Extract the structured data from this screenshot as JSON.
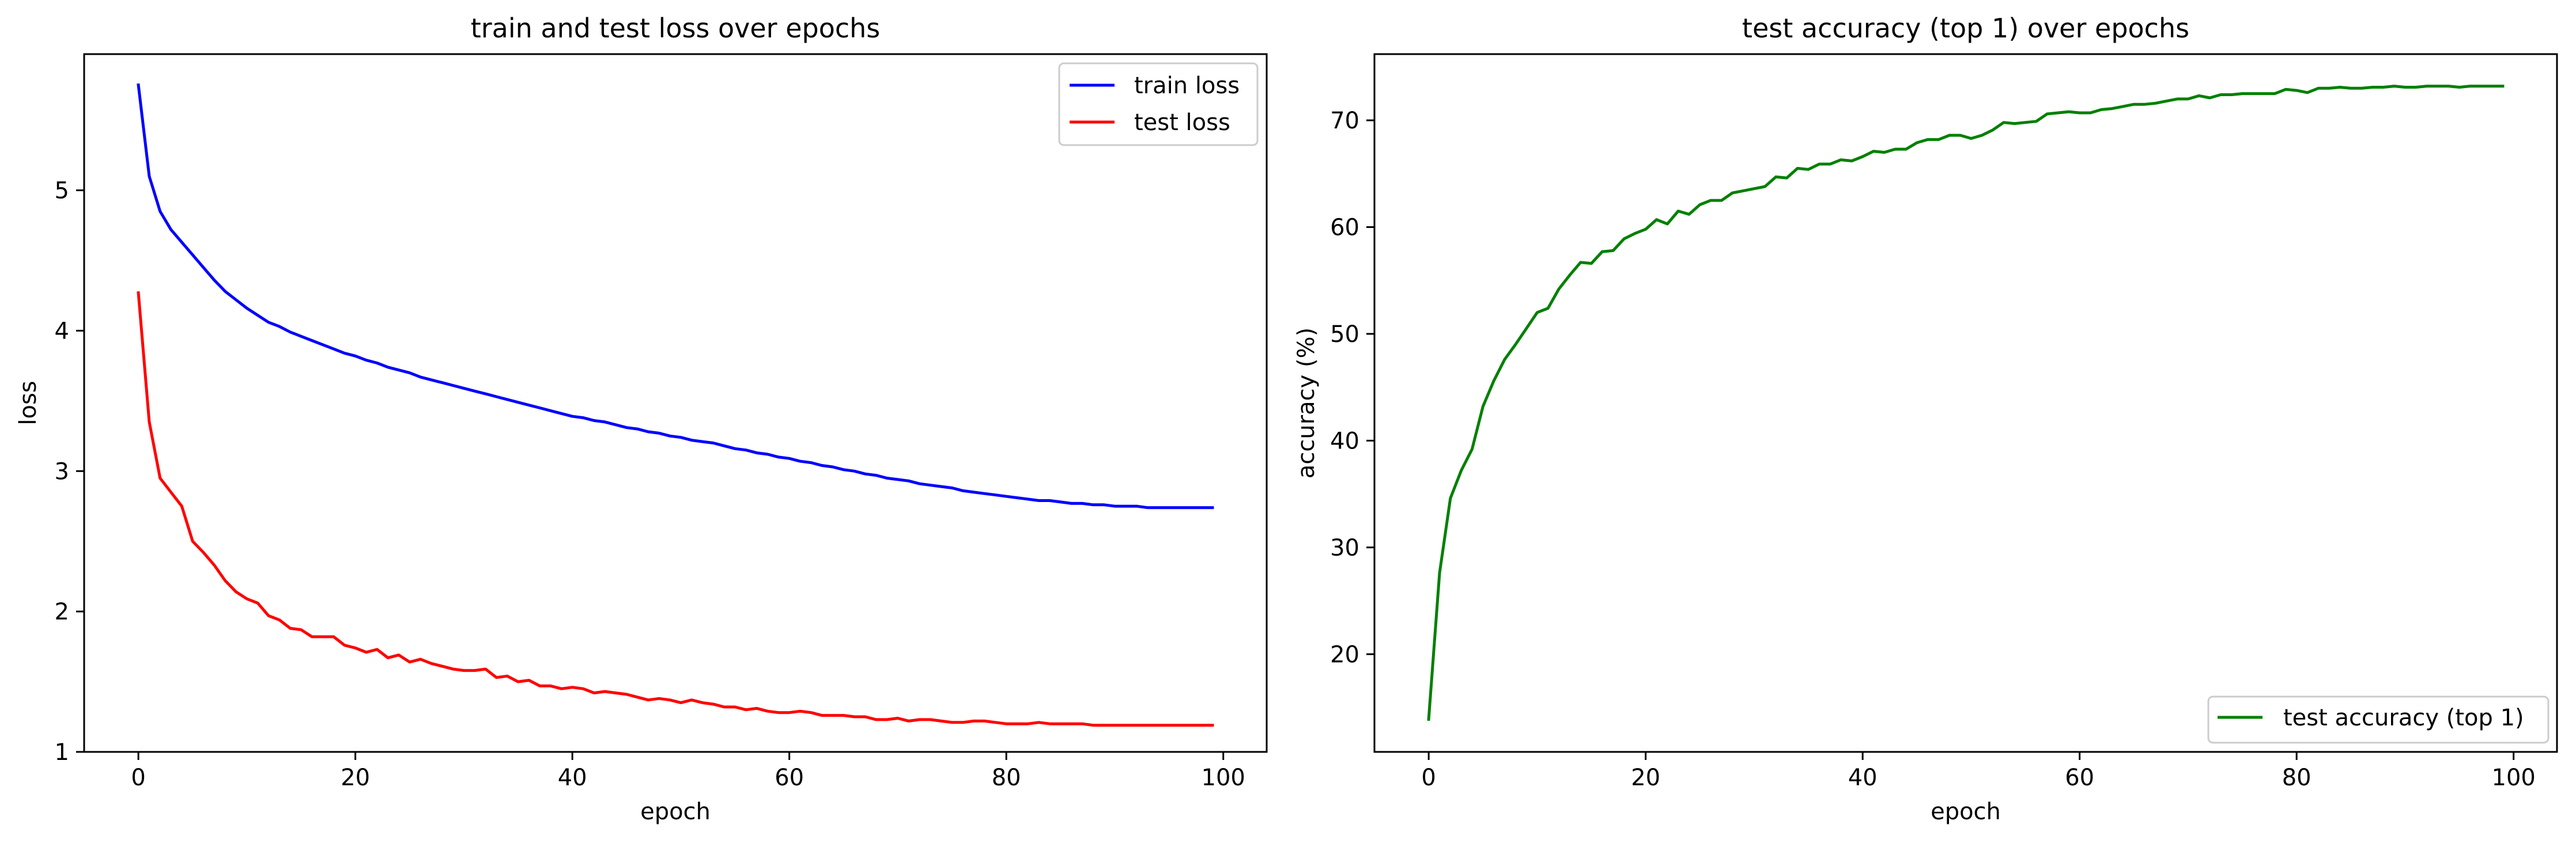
{
  "chart_data": [
    {
      "type": "line",
      "title": "train and test loss over epochs",
      "xlabel": "epoch",
      "ylabel": "loss",
      "xlim": [
        -5,
        104
      ],
      "ylim": [
        1.0,
        5.97
      ],
      "xticks": [
        0,
        20,
        40,
        60,
        80,
        100
      ],
      "yticks": [
        1,
        2,
        3,
        4,
        5
      ],
      "grid": false,
      "legend_position": "top-right",
      "series": [
        {
          "name": "train loss",
          "color": "#0000ff",
          "x": [
            0,
            1,
            2,
            3,
            4,
            5,
            6,
            7,
            8,
            9,
            10,
            11,
            12,
            13,
            14,
            15,
            16,
            17,
            18,
            19,
            20,
            21,
            22,
            23,
            24,
            25,
            26,
            27,
            28,
            29,
            30,
            31,
            32,
            33,
            34,
            35,
            36,
            37,
            38,
            39,
            40,
            41,
            42,
            43,
            44,
            45,
            46,
            47,
            48,
            49,
            50,
            51,
            52,
            53,
            54,
            55,
            56,
            57,
            58,
            59,
            60,
            61,
            62,
            63,
            64,
            65,
            66,
            67,
            68,
            69,
            70,
            71,
            72,
            73,
            74,
            75,
            76,
            77,
            78,
            79,
            80,
            81,
            82,
            83,
            84,
            85,
            86,
            87,
            88,
            89,
            90,
            91,
            92,
            93,
            94,
            95,
            96,
            97,
            98,
            99
          ],
          "values": [
            5.75,
            5.1,
            4.85,
            4.72,
            4.63,
            4.54,
            4.45,
            4.36,
            4.28,
            4.22,
            4.16,
            4.11,
            4.06,
            4.03,
            3.99,
            3.96,
            3.93,
            3.9,
            3.87,
            3.84,
            3.82,
            3.79,
            3.77,
            3.74,
            3.72,
            3.7,
            3.67,
            3.65,
            3.63,
            3.61,
            3.59,
            3.57,
            3.55,
            3.53,
            3.51,
            3.49,
            3.47,
            3.45,
            3.43,
            3.41,
            3.39,
            3.38,
            3.36,
            3.35,
            3.33,
            3.31,
            3.3,
            3.28,
            3.27,
            3.25,
            3.24,
            3.22,
            3.21,
            3.2,
            3.18,
            3.16,
            3.15,
            3.13,
            3.12,
            3.1,
            3.09,
            3.07,
            3.06,
            3.04,
            3.03,
            3.01,
            3.0,
            2.98,
            2.97,
            2.95,
            2.94,
            2.93,
            2.91,
            2.9,
            2.89,
            2.88,
            2.86,
            2.85,
            2.84,
            2.83,
            2.82,
            2.81,
            2.8,
            2.79,
            2.79,
            2.78,
            2.77,
            2.77,
            2.76,
            2.76,
            2.75,
            2.75,
            2.75,
            2.74,
            2.74,
            2.74,
            2.74,
            2.74,
            2.74,
            2.74
          ]
        },
        {
          "name": "test loss",
          "color": "#ff0000",
          "x": [
            0,
            1,
            2,
            3,
            4,
            5,
            6,
            7,
            8,
            9,
            10,
            11,
            12,
            13,
            14,
            15,
            16,
            17,
            18,
            19,
            20,
            21,
            22,
            23,
            24,
            25,
            26,
            27,
            28,
            29,
            30,
            31,
            32,
            33,
            34,
            35,
            36,
            37,
            38,
            39,
            40,
            41,
            42,
            43,
            44,
            45,
            46,
            47,
            48,
            49,
            50,
            51,
            52,
            53,
            54,
            55,
            56,
            57,
            58,
            59,
            60,
            61,
            62,
            63,
            64,
            65,
            66,
            67,
            68,
            69,
            70,
            71,
            72,
            73,
            74,
            75,
            76,
            77,
            78,
            79,
            80,
            81,
            82,
            83,
            84,
            85,
            86,
            87,
            88,
            89,
            90,
            91,
            92,
            93,
            94,
            95,
            96,
            97,
            98,
            99
          ],
          "values": [
            4.27,
            3.35,
            2.95,
            2.85,
            2.75,
            2.5,
            2.42,
            2.33,
            2.22,
            2.14,
            2.09,
            2.06,
            1.97,
            1.94,
            1.88,
            1.87,
            1.82,
            1.82,
            1.82,
            1.76,
            1.74,
            1.71,
            1.73,
            1.67,
            1.69,
            1.64,
            1.66,
            1.63,
            1.61,
            1.59,
            1.58,
            1.58,
            1.59,
            1.53,
            1.54,
            1.5,
            1.51,
            1.47,
            1.47,
            1.45,
            1.46,
            1.45,
            1.42,
            1.43,
            1.42,
            1.41,
            1.39,
            1.37,
            1.38,
            1.37,
            1.35,
            1.37,
            1.35,
            1.34,
            1.32,
            1.32,
            1.3,
            1.31,
            1.29,
            1.28,
            1.28,
            1.29,
            1.28,
            1.26,
            1.26,
            1.26,
            1.25,
            1.25,
            1.23,
            1.23,
            1.24,
            1.22,
            1.23,
            1.23,
            1.22,
            1.21,
            1.21,
            1.22,
            1.22,
            1.21,
            1.2,
            1.2,
            1.2,
            1.21,
            1.2,
            1.2,
            1.2,
            1.2,
            1.19,
            1.19,
            1.19,
            1.19,
            1.19,
            1.19,
            1.19,
            1.19,
            1.19,
            1.19,
            1.19,
            1.19
          ]
        }
      ]
    },
    {
      "type": "line",
      "title": "test accuracy (top 1) over epochs",
      "xlabel": "epoch",
      "ylabel": "accuracy (%)",
      "xlim": [
        -5,
        104
      ],
      "ylim": [
        10.85,
        76.2
      ],
      "xticks": [
        0,
        20,
        40,
        60,
        80,
        100
      ],
      "yticks": [
        20,
        30,
        40,
        50,
        60,
        70
      ],
      "grid": false,
      "legend_position": "bottom-right",
      "series": [
        {
          "name": "test accuracy (top 1)",
          "color": "#008000",
          "x": [
            0,
            1,
            2,
            3,
            4,
            5,
            6,
            7,
            8,
            9,
            10,
            11,
            12,
            13,
            14,
            15,
            16,
            17,
            18,
            19,
            20,
            21,
            22,
            23,
            24,
            25,
            26,
            27,
            28,
            29,
            30,
            31,
            32,
            33,
            34,
            35,
            36,
            37,
            38,
            39,
            40,
            41,
            42,
            43,
            44,
            45,
            46,
            47,
            48,
            49,
            50,
            51,
            52,
            53,
            54,
            55,
            56,
            57,
            58,
            59,
            60,
            61,
            62,
            63,
            64,
            65,
            66,
            67,
            68,
            69,
            70,
            71,
            72,
            73,
            74,
            75,
            76,
            77,
            78,
            79,
            80,
            81,
            82,
            83,
            84,
            85,
            86,
            87,
            88,
            89,
            90,
            91,
            92,
            93,
            94,
            95,
            96,
            97,
            98,
            99
          ],
          "values": [
            13.9,
            27.6,
            34.6,
            37.2,
            39.2,
            43.2,
            45.6,
            47.6,
            49.0,
            50.5,
            52.0,
            52.4,
            54.2,
            55.5,
            56.7,
            56.6,
            57.7,
            57.8,
            58.9,
            59.4,
            59.8,
            60.7,
            60.3,
            61.5,
            61.2,
            62.1,
            62.5,
            62.5,
            63.2,
            63.4,
            63.6,
            63.8,
            64.7,
            64.6,
            65.5,
            65.4,
            65.9,
            65.9,
            66.3,
            66.2,
            66.6,
            67.1,
            67.0,
            67.3,
            67.3,
            67.9,
            68.2,
            68.2,
            68.6,
            68.6,
            68.3,
            68.6,
            69.1,
            69.8,
            69.7,
            69.8,
            69.9,
            70.6,
            70.7,
            70.8,
            70.7,
            70.7,
            71.0,
            71.1,
            71.3,
            71.5,
            71.5,
            71.6,
            71.8,
            72.0,
            72.0,
            72.3,
            72.1,
            72.4,
            72.4,
            72.5,
            72.5,
            72.5,
            72.5,
            72.9,
            72.8,
            72.6,
            73.0,
            73.0,
            73.1,
            73.0,
            73.0,
            73.1,
            73.1,
            73.2,
            73.1,
            73.1,
            73.2,
            73.2,
            73.2,
            73.1,
            73.2,
            73.2,
            73.2,
            73.2
          ]
        }
      ]
    }
  ]
}
